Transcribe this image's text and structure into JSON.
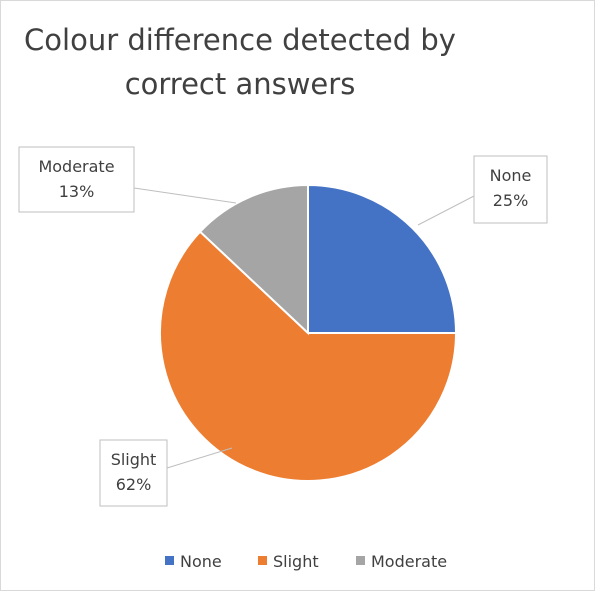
{
  "chart_data": {
    "type": "pie",
    "title": "Colour difference detected by correct answers",
    "categories": [
      "None",
      "Slight",
      "Moderate"
    ],
    "values": [
      25,
      62,
      13
    ],
    "value_labels": [
      "25%",
      "62%",
      "13%"
    ],
    "colors": [
      "#4472c4",
      "#ed7d31",
      "#a5a5a5"
    ],
    "legend": "bottom"
  }
}
